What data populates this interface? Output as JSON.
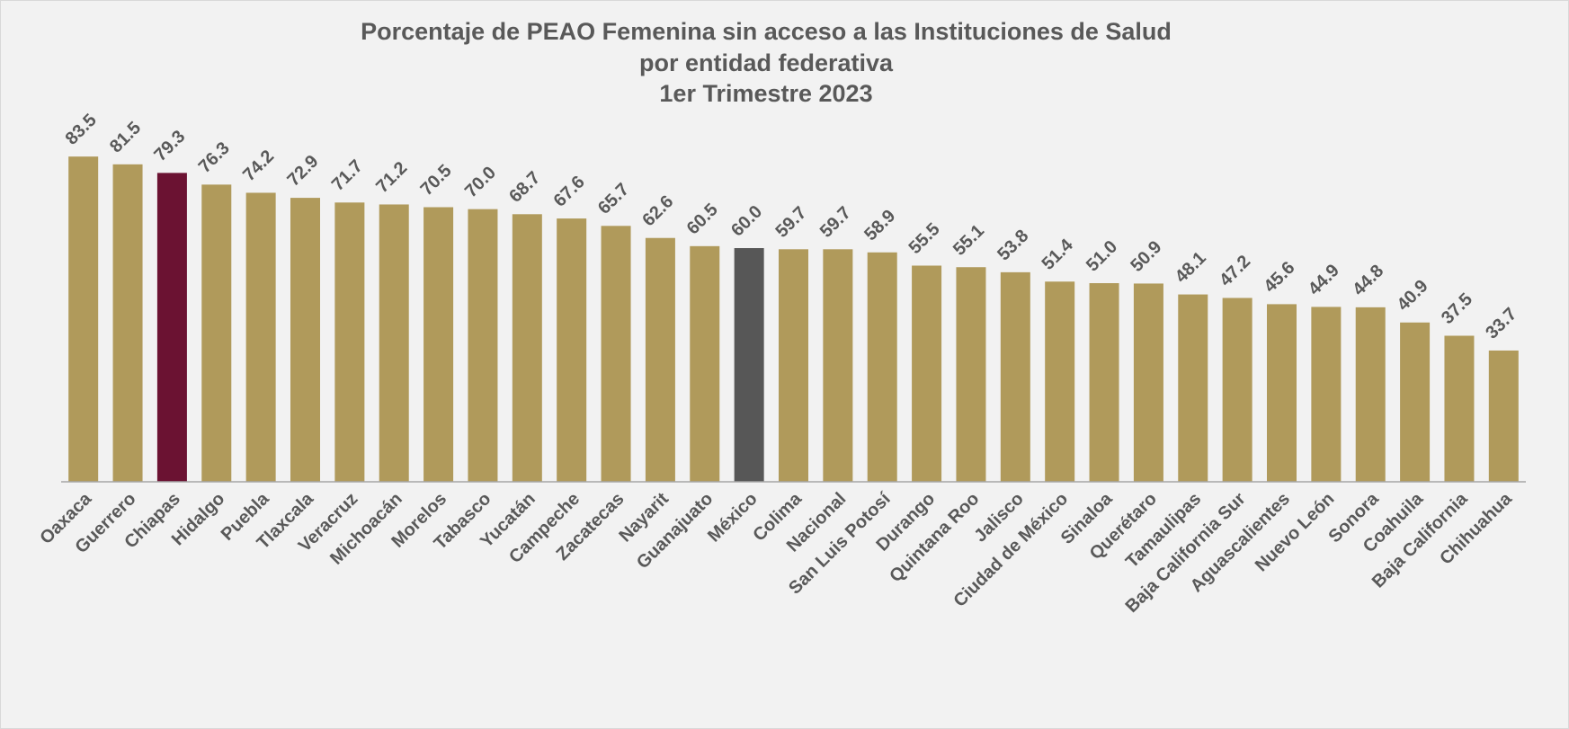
{
  "chart_data": {
    "type": "bar",
    "title": [
      "Porcentaje de PEAO Femenina sin acceso a las Instituciones de Salud",
      "por entidad federativa",
      "1er Trimestre 2023"
    ],
    "categories": [
      "Oaxaca",
      "Guerrero",
      "Chiapas",
      "Hidalgo",
      "Puebla",
      "Tlaxcala",
      "Veracruz",
      "Michoacán",
      "Morelos",
      "Tabasco",
      "Yucatán",
      "Campeche",
      "Zacatecas",
      "Nayarit",
      "Guanajuato",
      "México",
      "Colima",
      "Nacional",
      "San Luis Potosí",
      "Durango",
      "Quintana Roo",
      "Jalisco",
      "Ciudad de México",
      "Sinaloa",
      "Querétaro",
      "Tamaulipas",
      "Baja California Sur",
      "Aguascalientes",
      "Nuevo León",
      "Sonora",
      "Coahuila",
      "Baja California",
      "Chihuahua"
    ],
    "values": [
      83.5,
      81.5,
      79.3,
      76.3,
      74.2,
      72.9,
      71.7,
      71.2,
      70.5,
      70,
      68.7,
      67.6,
      65.7,
      62.6,
      60.5,
      60,
      59.7,
      59.7,
      58.9,
      55.5,
      55.1,
      53.8,
      51.4,
      51,
      50.9,
      48.1,
      47.2,
      45.6,
      44.9,
      44.8,
      40.9,
      37.5,
      33.7
    ],
    "value_labels": [
      "83.5",
      "81.5",
      "79.3",
      "76.3",
      "74.2",
      "72.9",
      "71.7",
      "71.2",
      "70.5",
      "70.0",
      "68.7",
      "67.6",
      "65.7",
      "62.6",
      "60.5",
      "60.0",
      "59.7",
      "59.7",
      "58.9",
      "55.5",
      "55.1",
      "53.8",
      "51.4",
      "51.0",
      "50.9",
      "48.1",
      "47.2",
      "45.6",
      "44.9",
      "44.8",
      "40.9",
      "37.5",
      "33.7"
    ],
    "colors": [
      "#b09a5b",
      "#b09a5b",
      "#6b1232",
      "#b09a5b",
      "#b09a5b",
      "#b09a5b",
      "#b09a5b",
      "#b09a5b",
      "#b09a5b",
      "#b09a5b",
      "#b09a5b",
      "#b09a5b",
      "#b09a5b",
      "#b09a5b",
      "#b09a5b",
      "#575757",
      "#b09a5b",
      "#b09a5b",
      "#b09a5b",
      "#b09a5b",
      "#b09a5b",
      "#b09a5b",
      "#b09a5b",
      "#b09a5b",
      "#b09a5b",
      "#b09a5b",
      "#b09a5b",
      "#b09a5b",
      "#b09a5b",
      "#b09a5b",
      "#b09a5b",
      "#b09a5b",
      "#b09a5b"
    ],
    "ylim": [
      0,
      90
    ]
  }
}
